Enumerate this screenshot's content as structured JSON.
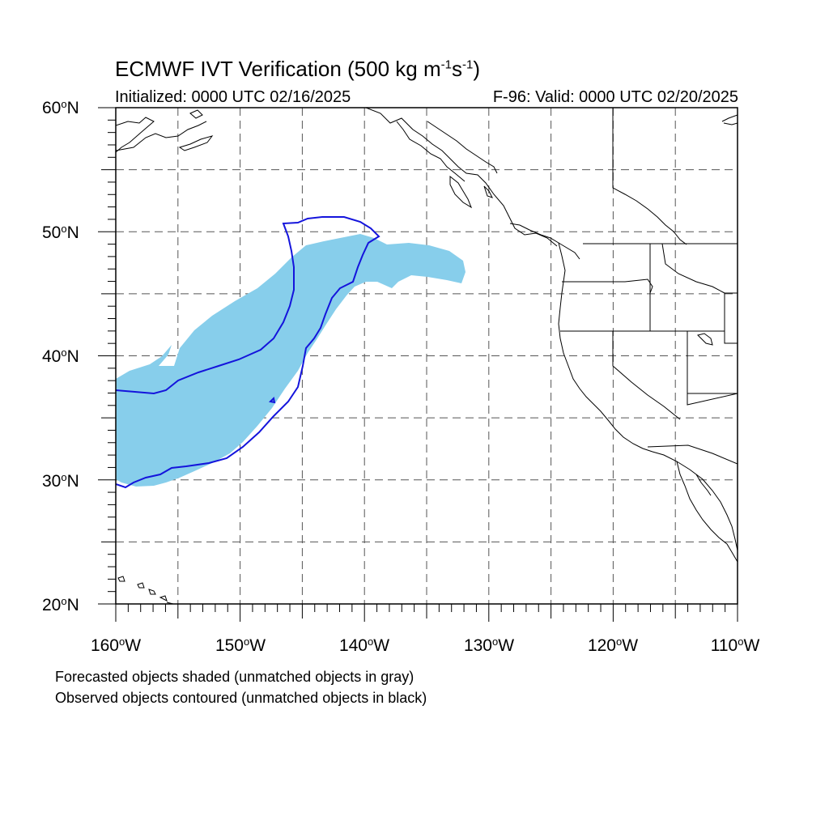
{
  "header": {
    "title_main": "ECMWF IVT Verification (500 kg m",
    "title_sup1": "-1",
    "title_mid": "s",
    "title_sup2": "-1",
    "title_end": ")",
    "initialized": "Initialized: 0000 UTC 02/16/2025",
    "valid": "F-96: Valid: 0000 UTC 02/20/2025"
  },
  "map": {
    "projection": "cylindrical equidistant",
    "lon_range": [
      -160,
      -110
    ],
    "lat_range": [
      20,
      60
    ],
    "grid_lines": "dashed every 5 degrees",
    "colors": {
      "forecast_fill": "#87ceeb",
      "observed_contour": "#1414dc",
      "coast": "#000000",
      "grid": "#555555"
    }
  },
  "axes": {
    "lat_labels": [
      {
        "deg": "60",
        "hem": "N"
      },
      {
        "deg": "50",
        "hem": "N"
      },
      {
        "deg": "40",
        "hem": "N"
      },
      {
        "deg": "30",
        "hem": "N"
      },
      {
        "deg": "20",
        "hem": "N"
      }
    ],
    "lon_labels": [
      {
        "deg": "160",
        "hem": "W"
      },
      {
        "deg": "150",
        "hem": "W"
      },
      {
        "deg": "140",
        "hem": "W"
      },
      {
        "deg": "130",
        "hem": "W"
      },
      {
        "deg": "120",
        "hem": "W"
      },
      {
        "deg": "110",
        "hem": "W"
      }
    ]
  },
  "notes": [
    "Forecasted objects shaded (unmatched objects in gray)",
    "Observed objects contoured (unmatched objects in black)"
  ]
}
